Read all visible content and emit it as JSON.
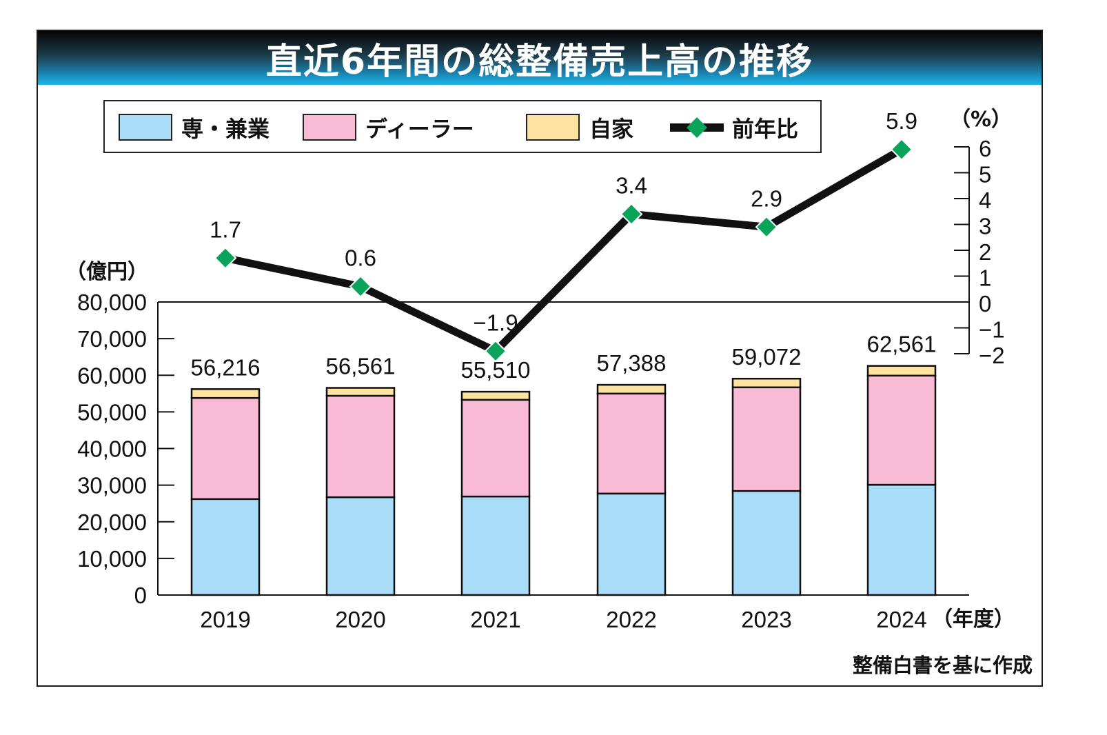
{
  "title": "直近6年間の総整備売上高の推移",
  "source": "整備白書を基に作成",
  "colors": {
    "specialist": "#a8dcf7",
    "dealer": "#f9bad6",
    "in_house": "#fde2a0",
    "yoy_line": "#111111",
    "yoy_marker": "#0aa35a",
    "title_gradient_top": "#050505",
    "title_gradient_bottom": "#19b7ea"
  },
  "chart_data": {
    "type": "bar",
    "subtype": "stacked-bar-with-line",
    "title": "直近6年間の総整備売上高の推移",
    "categories": [
      "2019",
      "2020",
      "2021",
      "2022",
      "2023",
      "2024"
    ],
    "x_unit_label": "（年度）",
    "xlabel": "",
    "ylabel": "（億円）",
    "ylim": [
      0,
      80000
    ],
    "y_ticks": [
      0,
      10000,
      20000,
      30000,
      40000,
      50000,
      60000,
      70000,
      80000
    ],
    "y_tick_labels": [
      "0",
      "10,000",
      "20,000",
      "30,000",
      "40,000",
      "50,000",
      "60,000",
      "70,000",
      "80,000"
    ],
    "y2label": "（%）",
    "y2lim": [
      -2,
      6
    ],
    "y2_ticks": [
      -2,
      -1,
      0,
      1,
      2,
      3,
      4,
      5,
      6
    ],
    "y2_tick_labels": [
      "−2",
      "−1",
      "0",
      "1",
      "2",
      "3",
      "4",
      "5",
      "6"
    ],
    "series": [
      {
        "name": "専・兼業",
        "type": "bar",
        "axis": "left",
        "values": [
          26200,
          26700,
          26900,
          27700,
          28400,
          30100
        ]
      },
      {
        "name": "ディーラー",
        "type": "bar",
        "axis": "left",
        "values": [
          27600,
          27700,
          26400,
          27300,
          28300,
          29800
        ]
      },
      {
        "name": "自家",
        "type": "bar",
        "axis": "left",
        "values": [
          2416,
          2161,
          2210,
          2388,
          2372,
          2661
        ]
      },
      {
        "name": "前年比",
        "type": "line",
        "axis": "right",
        "values": [
          1.7,
          0.6,
          -1.9,
          3.4,
          2.9,
          5.9
        ]
      }
    ],
    "totals": [
      56216,
      56561,
      55510,
      57388,
      59072,
      62561
    ],
    "total_labels": [
      "56,216",
      "56,561",
      "55,510",
      "57,388",
      "59,072",
      "62,561"
    ],
    "line_labels": [
      "1.7",
      "0.6",
      "−1.9",
      "3.4",
      "2.9",
      "5.9"
    ],
    "legend": [
      "専・兼業",
      "ディーラー",
      "自家",
      "前年比"
    ],
    "legend_position": "top",
    "grid": false
  }
}
